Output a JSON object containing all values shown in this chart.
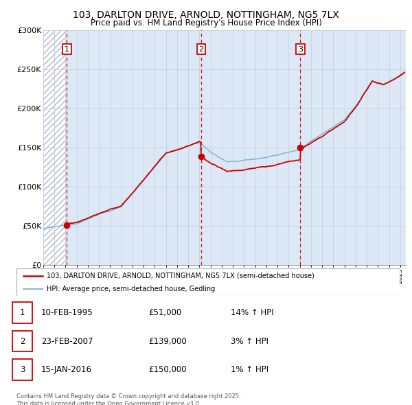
{
  "title": "103, DARLTON DRIVE, ARNOLD, NOTTINGHAM, NG5 7LX",
  "subtitle": "Price paid vs. HM Land Registry's House Price Index (HPI)",
  "xlim_start": 1993.0,
  "xlim_end": 2025.5,
  "ylim": [
    0,
    300000
  ],
  "yticks": [
    0,
    50000,
    100000,
    150000,
    200000,
    250000,
    300000
  ],
  "ytick_labels": [
    "£0",
    "£50K",
    "£100K",
    "£150K",
    "£200K",
    "£250K",
    "£300K"
  ],
  "grid_color": "#c8d4e0",
  "bg_color": "#dce8f5",
  "hatch_color": "#b0b8c8",
  "sale_color": "#cc0000",
  "hpi_color": "#7bafd4",
  "transactions": [
    {
      "date": 1995.12,
      "price": 51000,
      "label": "1"
    },
    {
      "date": 2007.15,
      "price": 139000,
      "label": "2"
    },
    {
      "date": 2016.04,
      "price": 150000,
      "label": "3"
    }
  ],
  "legend_entries": [
    {
      "label": "103, DARLTON DRIVE, ARNOLD, NOTTINGHAM, NG5 7LX (semi-detached house)",
      "color": "#cc0000"
    },
    {
      "label": "HPI: Average price, semi-detached house, Gedling",
      "color": "#7bafd4"
    }
  ],
  "table_rows": [
    {
      "num": "1",
      "date": "10-FEB-1995",
      "price": "£51,000",
      "hpi": "14% ↑ HPI"
    },
    {
      "num": "2",
      "date": "23-FEB-2007",
      "price": "£139,000",
      "hpi": "3% ↑ HPI"
    },
    {
      "num": "3",
      "date": "15-JAN-2016",
      "price": "£150,000",
      "hpi": "1% ↑ HPI"
    }
  ],
  "footnote": "Contains HM Land Registry data © Crown copyright and database right 2025.\nThis data is licensed under the Open Government Licence v3.0."
}
